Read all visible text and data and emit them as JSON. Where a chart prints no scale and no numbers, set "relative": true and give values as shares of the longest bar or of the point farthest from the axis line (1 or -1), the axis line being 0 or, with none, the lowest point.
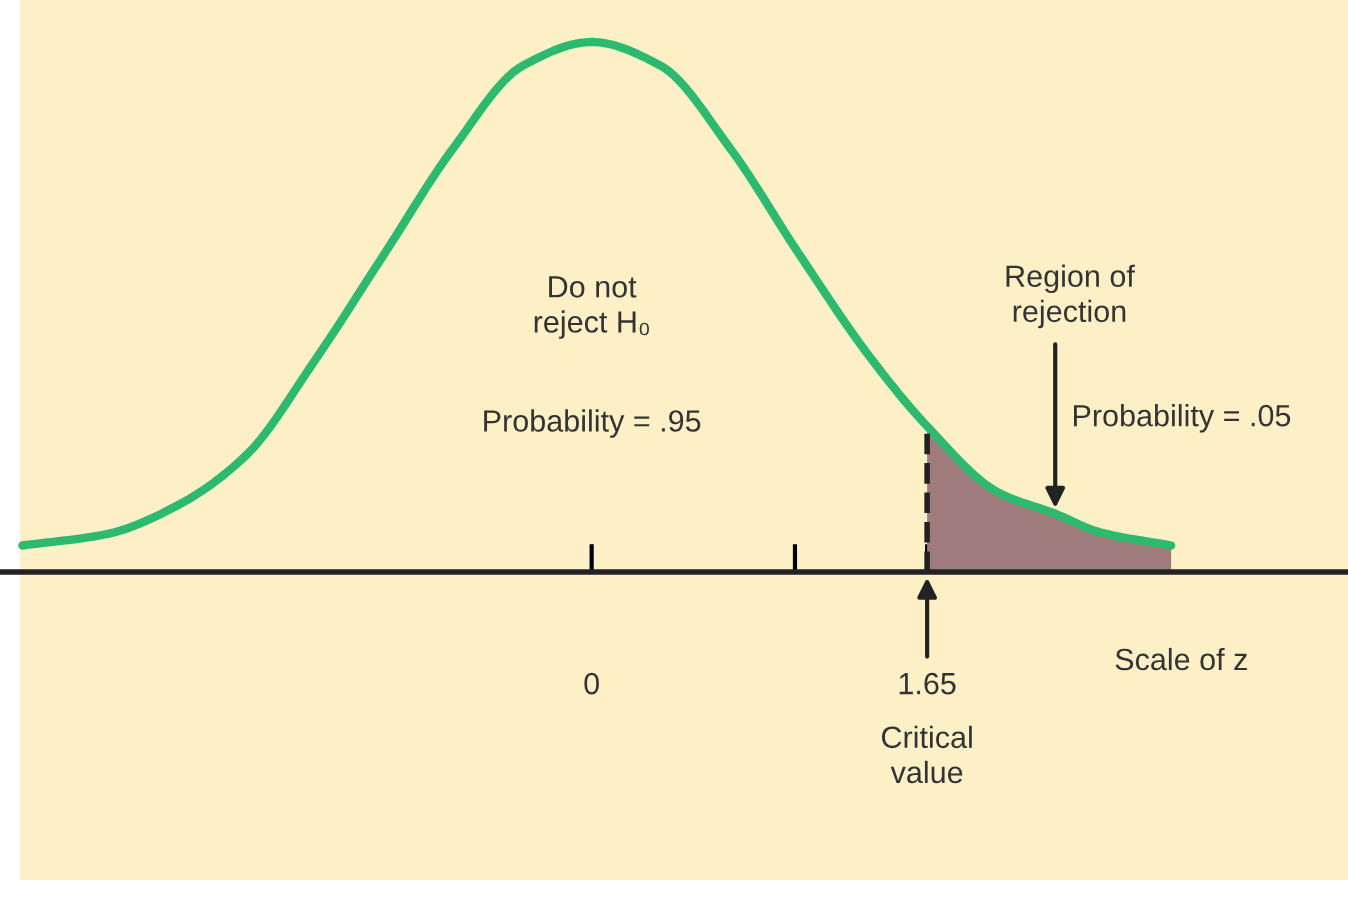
{
  "chart_data": {
    "type": "line",
    "relative": true,
    "xlabel": "Scale of z",
    "x": [
      -2.8,
      -2.38,
      -2.04,
      -1.7,
      -1.36,
      -1.02,
      -0.68,
      -0.34,
      0,
      0.34,
      0.68,
      1.02,
      1.36,
      1.65,
      2.0,
      2.28,
      2.5,
      2.85
    ],
    "series": [
      {
        "color": "#2dba6e",
        "values": [
          0.05,
          0.072,
          0.125,
          0.22,
          0.4,
          0.6,
          0.8,
          0.955,
          1.0,
          0.955,
          0.8,
          0.6,
          0.41,
          0.275,
          0.15,
          0.11,
          0.075,
          0.05
        ]
      },
      {
        "type": "area",
        "color": "#a07b7b",
        "x": [
          1.65,
          2.0,
          2.28,
          2.5,
          2.85
        ],
        "values": [
          0.275,
          0.15,
          0.11,
          0.075,
          0.05
        ]
      }
    ],
    "xlim": [
      -2.91,
      3.72
    ],
    "xticks": [
      0,
      {
        "value": 1,
        "label": null
      },
      1.65
    ],
    "ref_lines": [
      {
        "axis": "x",
        "value": 1.65,
        "line_style": "dashed",
        "color": "#222222"
      }
    ],
    "annotations": [
      "Do not\nreject H₀",
      "Probability = .95",
      "Region of\nrejection",
      {
        "text": "Probability = .05",
        "x": 2.28,
        "y": 0.11
      },
      "Critical\nvalue"
    ],
    "grid": false,
    "legend": false,
    "marker": "none",
    "line_style": "solid"
  }
}
